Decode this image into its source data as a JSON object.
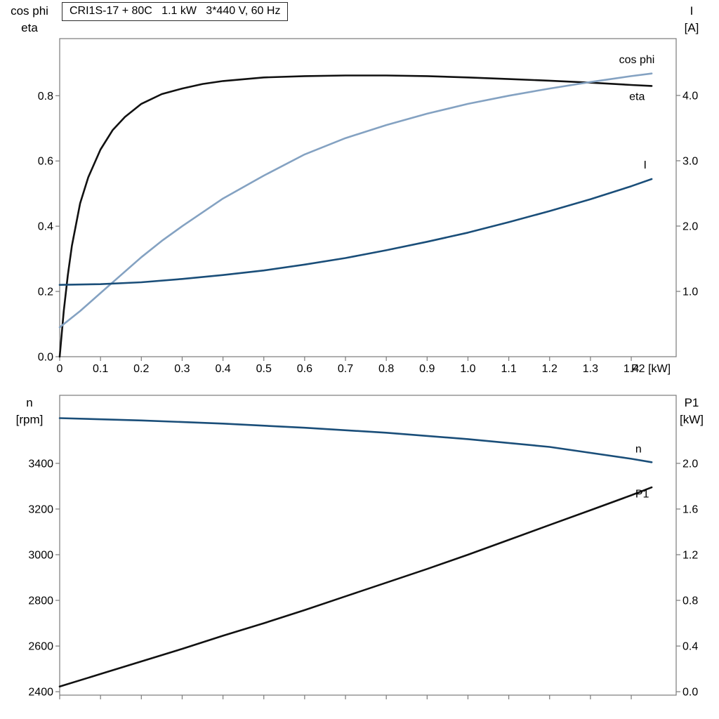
{
  "title_box": "CRI1S-17 + 80C   1.1 kW   3*440 V, 60 Hz",
  "colors": {
    "frame": "#7a7a7a",
    "text": "#000000",
    "black_curve": "#111111",
    "light_blue": "#84a2c2",
    "dark_blue": "#1a4e79"
  },
  "chart_data": [
    {
      "type": "line",
      "panel": "top",
      "x_range": [
        0,
        1.51
      ],
      "x_ticks": [
        0,
        0.1,
        0.2,
        0.3,
        0.4,
        0.5,
        0.6,
        0.7,
        0.8,
        0.9,
        1.0,
        1.1,
        1.2,
        1.3,
        1.4
      ],
      "x_tick_labels": [
        "0",
        "0.1",
        "0.2",
        "0.3",
        "0.4",
        "0.5",
        "0.6",
        "0.7",
        "0.8",
        "0.9",
        "1.0",
        "1.1",
        "1.2",
        "1.3",
        "1.4"
      ],
      "x_axis_label": "P2 [kW]",
      "left_axis": {
        "title_lines": [
          "cos phi",
          "eta"
        ],
        "range": [
          0,
          0.975
        ],
        "ticks": [
          0,
          0.2,
          0.4,
          0.6,
          0.8
        ],
        "tick_labels": [
          "0.0",
          "0.2",
          "0.4",
          "0.6",
          "0.8"
        ]
      },
      "right_axis": {
        "title_lines": [
          "I",
          "[A]"
        ],
        "range": [
          0,
          4.87
        ],
        "ticks": [
          1,
          2,
          3,
          4
        ],
        "tick_labels": [
          "1.0",
          "2.0",
          "3.0",
          "4.0"
        ]
      },
      "series": [
        {
          "name": "eta",
          "axis": "left",
          "color": "#111111",
          "label": "eta",
          "label_at": [
            1.395,
            0.787
          ],
          "x": [
            0,
            0.01,
            0.02,
            0.03,
            0.05,
            0.07,
            0.1,
            0.13,
            0.16,
            0.2,
            0.25,
            0.3,
            0.35,
            0.4,
            0.5,
            0.6,
            0.7,
            0.8,
            0.9,
            1.0,
            1.1,
            1.2,
            1.3,
            1.4,
            1.45
          ],
          "y": [
            0,
            0.14,
            0.25,
            0.34,
            0.47,
            0.55,
            0.635,
            0.695,
            0.735,
            0.775,
            0.805,
            0.822,
            0.836,
            0.845,
            0.856,
            0.86,
            0.862,
            0.862,
            0.86,
            0.856,
            0.851,
            0.846,
            0.84,
            0.833,
            0.83
          ]
        },
        {
          "name": "cos phi",
          "axis": "left",
          "color": "#84a2c2",
          "label": "cos phi",
          "label_at": [
            1.37,
            0.9
          ],
          "x": [
            0,
            0.05,
            0.1,
            0.15,
            0.2,
            0.25,
            0.3,
            0.4,
            0.5,
            0.6,
            0.7,
            0.8,
            0.9,
            1.0,
            1.1,
            1.2,
            1.3,
            1.4,
            1.45
          ],
          "y": [
            0.09,
            0.14,
            0.195,
            0.25,
            0.305,
            0.355,
            0.4,
            0.485,
            0.555,
            0.62,
            0.67,
            0.71,
            0.745,
            0.775,
            0.8,
            0.822,
            0.842,
            0.86,
            0.868
          ]
        },
        {
          "name": "I",
          "axis": "right",
          "color": "#1a4e79",
          "label": "I",
          "label_at": [
            1.43,
            2.88
          ],
          "x": [
            0,
            0.1,
            0.2,
            0.3,
            0.4,
            0.5,
            0.6,
            0.7,
            0.8,
            0.9,
            1.0,
            1.1,
            1.2,
            1.3,
            1.4,
            1.45
          ],
          "y": [
            1.1,
            1.11,
            1.14,
            1.19,
            1.25,
            1.32,
            1.41,
            1.51,
            1.63,
            1.76,
            1.9,
            2.06,
            2.23,
            2.41,
            2.61,
            2.72
          ]
        }
      ]
    },
    {
      "type": "line",
      "panel": "bottom",
      "x_range": [
        0,
        1.51
      ],
      "x_ticks": [
        0,
        0.1,
        0.2,
        0.3,
        0.4,
        0.5,
        0.6,
        0.7,
        0.8,
        0.9,
        1.0,
        1.1,
        1.2,
        1.3,
        1.4
      ],
      "x_tick_labels": [],
      "x_axis_label": "",
      "left_axis": {
        "title_lines": [
          "n",
          "[rpm]"
        ],
        "range": [
          2385,
          3698
        ],
        "ticks": [
          2400,
          2600,
          2800,
          3000,
          3200,
          3400
        ],
        "tick_labels": [
          "2400",
          "2600",
          "2800",
          "3000",
          "3200",
          "3400"
        ]
      },
      "right_axis": {
        "title_lines": [
          "P1",
          "[kW]"
        ],
        "range": [
          -0.03,
          2.596
        ],
        "ticks": [
          0,
          0.4,
          0.8,
          1.2,
          1.6,
          2.0
        ],
        "tick_labels": [
          "0.0",
          "0.4",
          "0.8",
          "1.2",
          "1.6",
          "2.0"
        ]
      },
      "series": [
        {
          "name": "n",
          "axis": "left",
          "color": "#1a4e79",
          "label": "n",
          "label_at": [
            1.41,
            3448
          ],
          "x": [
            0,
            0.2,
            0.4,
            0.6,
            0.8,
            1.0,
            1.2,
            1.4,
            1.45
          ],
          "y": [
            3598,
            3588,
            3574,
            3556,
            3534,
            3506,
            3472,
            3420,
            3405
          ]
        },
        {
          "name": "P1",
          "axis": "right",
          "color": "#111111",
          "label": "P1",
          "label_at": [
            1.41,
            1.7
          ],
          "x": [
            0,
            0.1,
            0.2,
            0.3,
            0.4,
            0.5,
            0.6,
            0.7,
            0.8,
            0.9,
            1.0,
            1.1,
            1.2,
            1.3,
            1.4,
            1.45
          ],
          "y": [
            0.045,
            0.155,
            0.265,
            0.375,
            0.49,
            0.6,
            0.715,
            0.835,
            0.955,
            1.075,
            1.2,
            1.33,
            1.46,
            1.59,
            1.72,
            1.79
          ]
        }
      ]
    }
  ]
}
